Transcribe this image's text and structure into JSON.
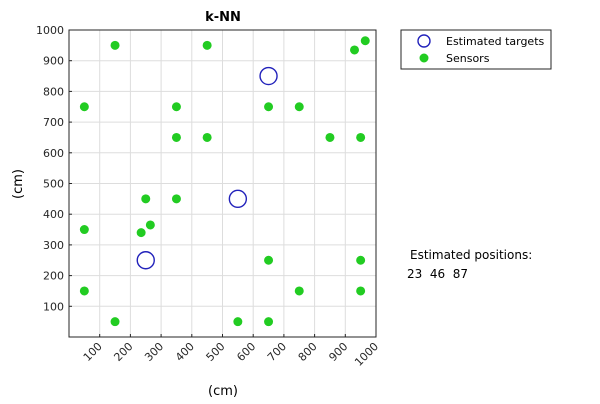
{
  "chart_data": {
    "type": "scatter",
    "title": "k-NN",
    "xlabel": "(cm)",
    "ylabel": "(cm)",
    "xlim": [
      0,
      1000
    ],
    "ylim": [
      0,
      1000
    ],
    "grid": true,
    "xticks": [
      100,
      200,
      300,
      400,
      500,
      600,
      700,
      800,
      900,
      1000
    ],
    "yticks": [
      100,
      200,
      300,
      400,
      500,
      600,
      700,
      800,
      900,
      1000
    ],
    "legend_position": "outside-top-right",
    "series": [
      {
        "name": "Estimated targets",
        "marker": "open-circle",
        "color": "#2222bb",
        "points": [
          {
            "x": 650,
            "y": 850
          },
          {
            "x": 550,
            "y": 450
          },
          {
            "x": 250,
            "y": 250
          }
        ]
      },
      {
        "name": "Sensors",
        "marker": "filled-circle",
        "color": "#22cc22",
        "points": [
          {
            "x": 150,
            "y": 950
          },
          {
            "x": 450,
            "y": 950
          },
          {
            "x": 930,
            "y": 935
          },
          {
            "x": 965,
            "y": 965
          },
          {
            "x": 50,
            "y": 750
          },
          {
            "x": 350,
            "y": 750
          },
          {
            "x": 650,
            "y": 750
          },
          {
            "x": 750,
            "y": 750
          },
          {
            "x": 350,
            "y": 650
          },
          {
            "x": 450,
            "y": 650
          },
          {
            "x": 850,
            "y": 650
          },
          {
            "x": 950,
            "y": 650
          },
          {
            "x": 250,
            "y": 450
          },
          {
            "x": 350,
            "y": 450
          },
          {
            "x": 265,
            "y": 365
          },
          {
            "x": 235,
            "y": 340
          },
          {
            "x": 50,
            "y": 350
          },
          {
            "x": 650,
            "y": 250
          },
          {
            "x": 950,
            "y": 250
          },
          {
            "x": 50,
            "y": 150
          },
          {
            "x": 750,
            "y": 150
          },
          {
            "x": 950,
            "y": 150
          },
          {
            "x": 150,
            "y": 50
          },
          {
            "x": 550,
            "y": 50
          },
          {
            "x": 650,
            "y": 50
          }
        ]
      }
    ]
  },
  "annotation": {
    "heading": "Estimated positions:",
    "values": "23  46  87"
  }
}
